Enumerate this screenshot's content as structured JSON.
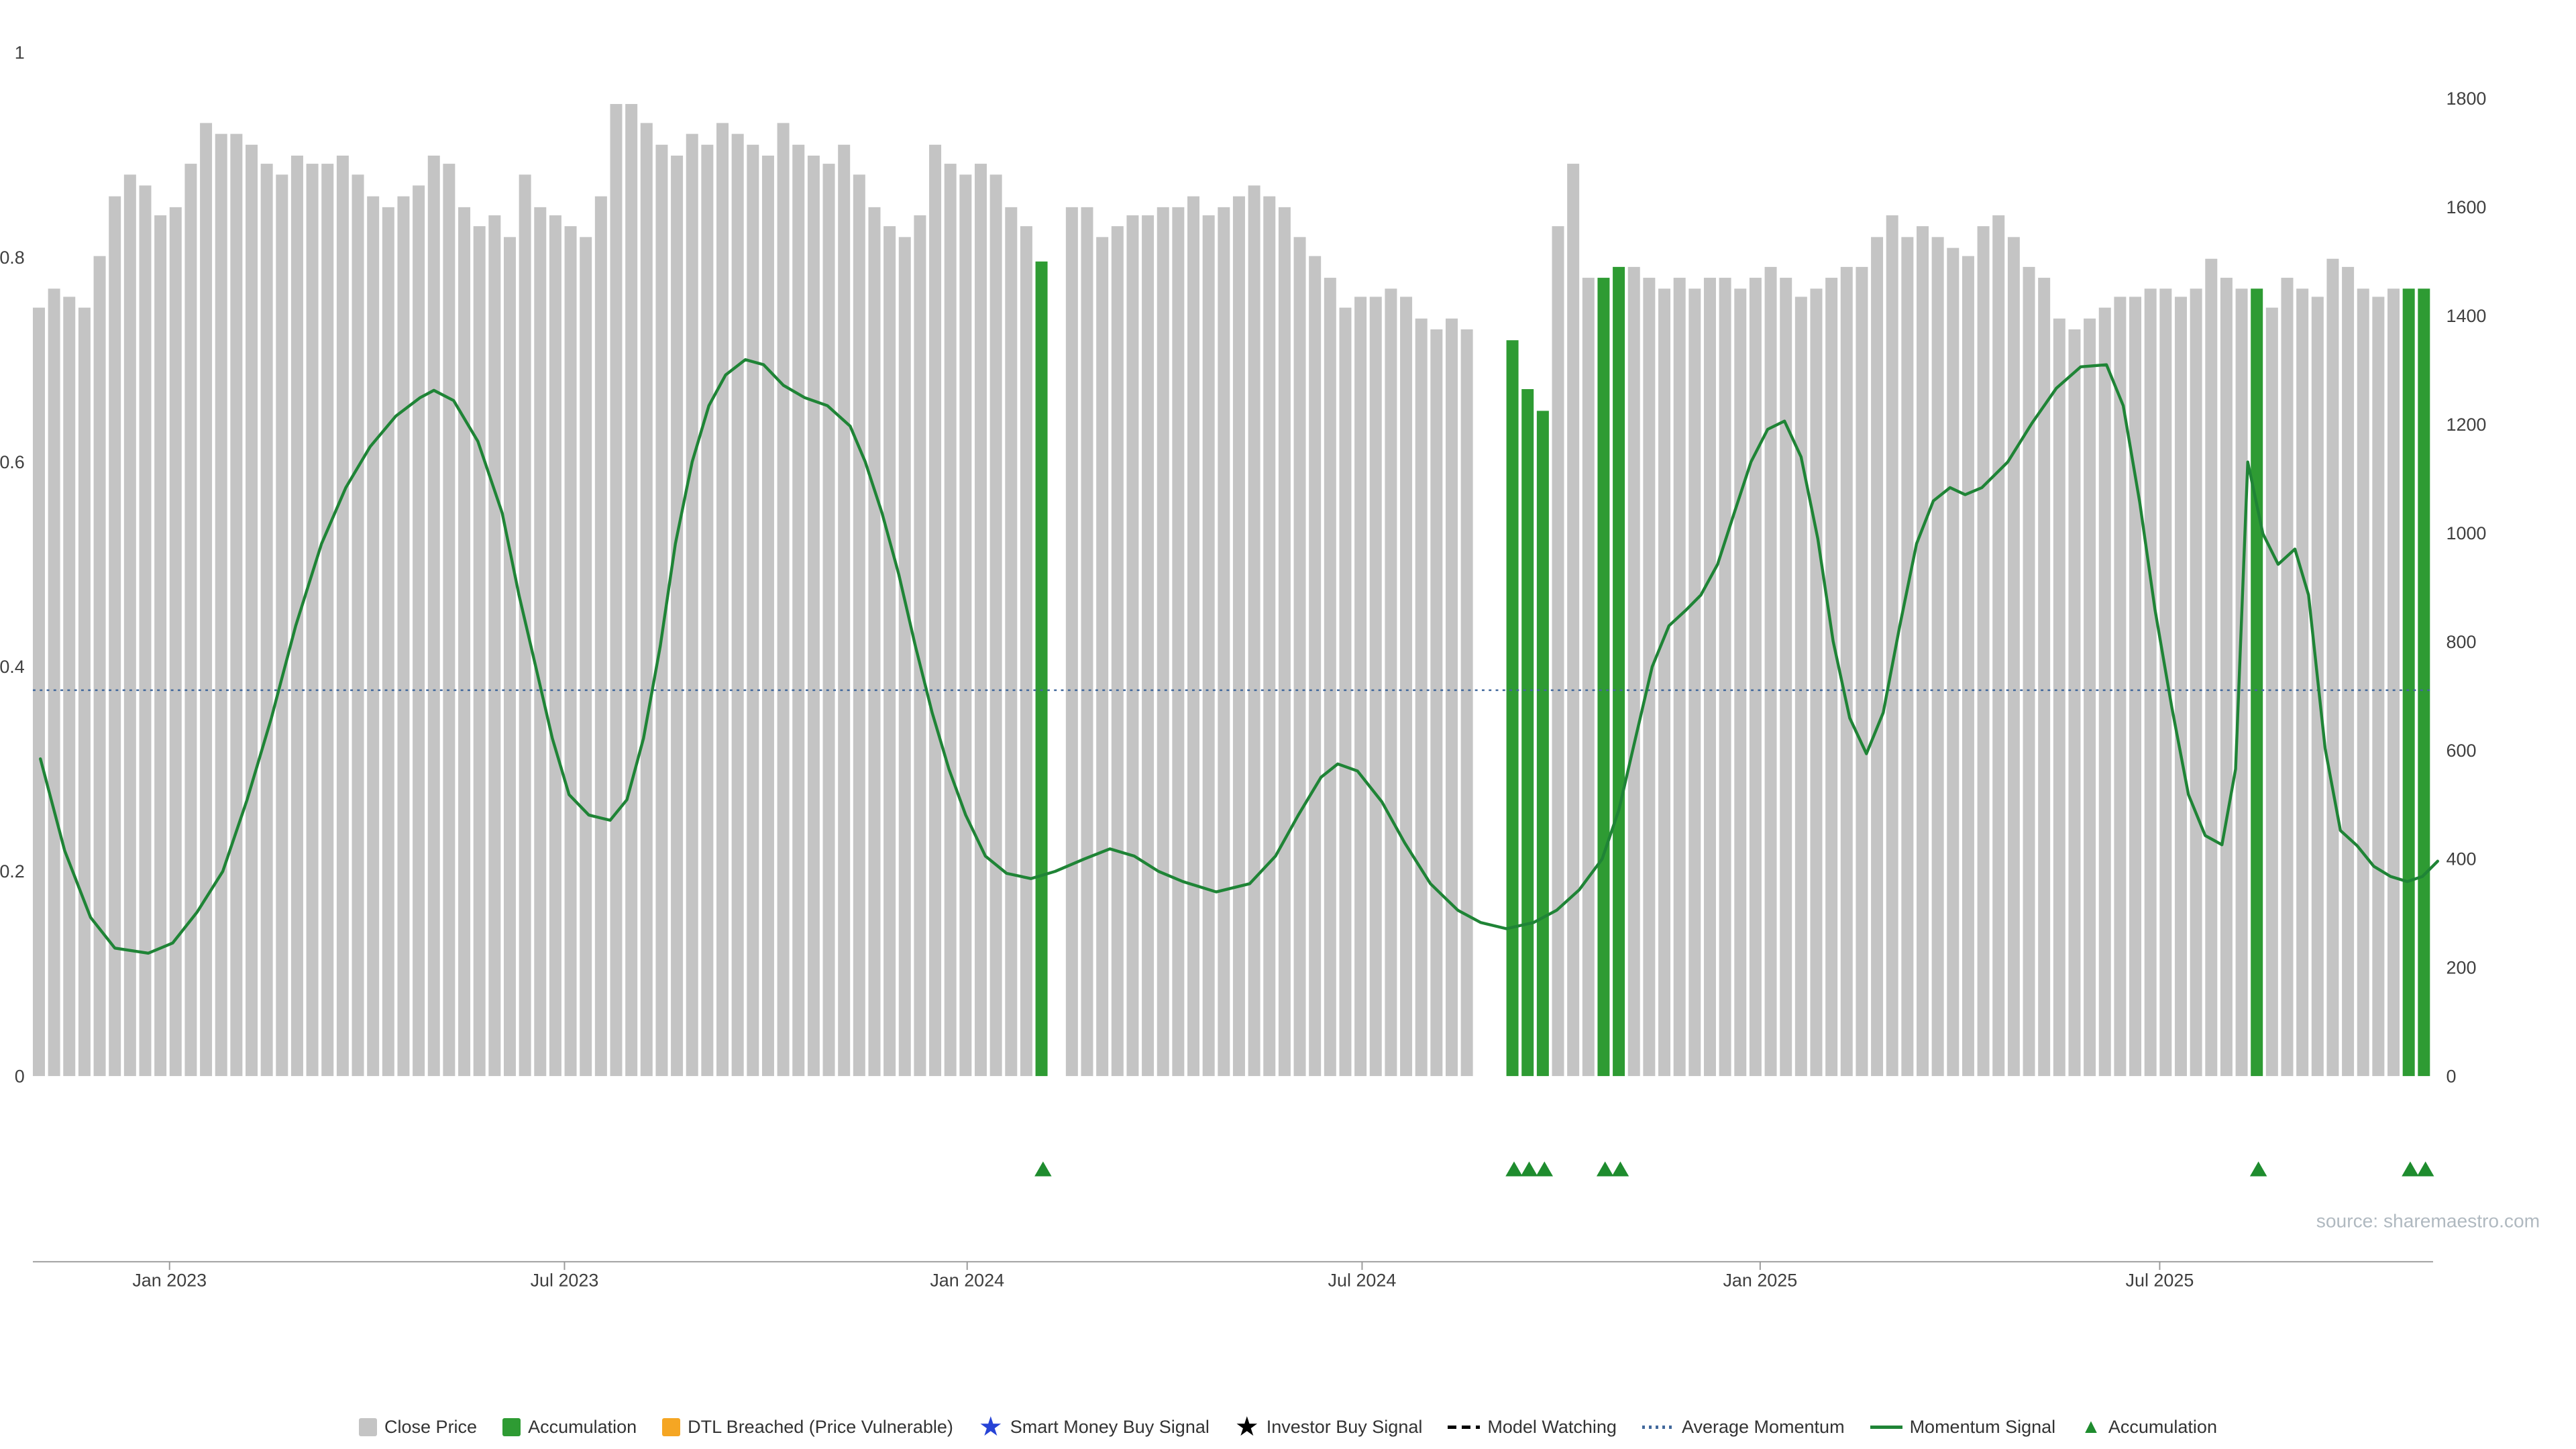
{
  "source_text": "source: sharemaestro.com",
  "colors": {
    "close_gray": "#c4c4c4",
    "accumulation_green": "#2e9b33",
    "momentum_green": "#1f8436",
    "triangle_green": "#1e8c2e",
    "average_momentum_blue": "#41689c",
    "axis_text": "#3f3f3f",
    "x_axis_line": "#9a9a9a",
    "source_text_color": "#b0b9c0",
    "legend_text": "#333333",
    "star_blue": "#2743d6",
    "star_black": "#000000",
    "dash_black": "#000000",
    "dtl_orange": "#f5a623"
  },
  "axes": {
    "left_tick_values": [
      0,
      0.2,
      0.4,
      0.6,
      0.8,
      1
    ],
    "left_tick_labels": [
      "0",
      "0.2",
      "0.4",
      "0.6",
      "0.8",
      "1"
    ],
    "right_tick_values": [
      0,
      200,
      400,
      600,
      800,
      1000,
      1200,
      1400,
      1600,
      1800
    ],
    "right_tick_labels": [
      "0",
      "200",
      "400",
      "600",
      "800",
      "1000",
      "1200",
      "1400",
      "1600",
      "1800"
    ],
    "x_ticks": [
      {
        "label": "Jan 2023",
        "index": 9
      },
      {
        "label": "Jul 2023",
        "index": 35
      },
      {
        "label": "Jan 2024",
        "index": 61.5
      },
      {
        "label": "Jul 2024",
        "index": 87.5
      },
      {
        "label": "Jan 2025",
        "index": 113.7
      },
      {
        "label": "Jul 2025",
        "index": 140
      }
    ]
  },
  "legend": {
    "items": [
      {
        "marker": "square",
        "color": "#c4c4c4",
        "label": "Close Price"
      },
      {
        "marker": "square",
        "color": "#2e9b33",
        "label": "Accumulation"
      },
      {
        "marker": "square",
        "color": "#f5a623",
        "label": "DTL Breached (Price Vulnerable)"
      },
      {
        "marker": "star",
        "color": "#2743d6",
        "label": "Smart Money Buy Signal"
      },
      {
        "marker": "star",
        "color": "#000000",
        "label": "Investor Buy Signal"
      },
      {
        "marker": "dashes",
        "color": "#000000",
        "label": "Model Watching"
      },
      {
        "marker": "dotted-line",
        "color": "#41689c",
        "label": "Average Momentum"
      },
      {
        "marker": "solid-line",
        "color": "#1f8436",
        "label": "Momentum Signal"
      },
      {
        "marker": "triangle",
        "color": "#1e8c2e",
        "label": "Accumulation"
      }
    ]
  },
  "chart_data": {
    "type": "bar",
    "title": "",
    "description": "Weekly close price bars (right axis) with accumulation weeks highlighted in green, momentum signal line and average momentum (left axis 0-1), plus accumulation triangle markers below the plot.",
    "x_axis": {
      "labels": [
        "Jan 2023",
        "Jul 2023",
        "Jan 2024",
        "Jul 2024",
        "Jan 2025",
        "Jul 2025"
      ]
    },
    "left_axis": {
      "range": [
        0,
        1
      ],
      "ticks": [
        0,
        0.2,
        0.4,
        0.6,
        0.8,
        1
      ]
    },
    "right_axis": {
      "range": [
        0,
        1800
      ],
      "ticks": [
        0,
        200,
        400,
        600,
        800,
        1000,
        1200,
        1400,
        1600,
        1800
      ]
    },
    "close_prices": [
      1415,
      1450,
      1435,
      1415,
      1510,
      1620,
      1660,
      1640,
      1585,
      1600,
      1680,
      1755,
      1735,
      1735,
      1715,
      1680,
      1660,
      1695,
      1680,
      1680,
      1695,
      1660,
      1620,
      1600,
      1620,
      1640,
      1695,
      1680,
      1600,
      1565,
      1585,
      1545,
      1660,
      1600,
      1585,
      1565,
      1545,
      1620,
      1790,
      1790,
      1755,
      1715,
      1695,
      1735,
      1715,
      1755,
      1735,
      1715,
      1695,
      1755,
      1715,
      1695,
      1680,
      1715,
      1660,
      1600,
      1565,
      1545,
      1585,
      1715,
      1680,
      1660,
      1680,
      1660,
      1600,
      1565,
      1500,
      null,
      1600,
      1600,
      1545,
      1565,
      1585,
      1585,
      1600,
      1600,
      1620,
      1585,
      1600,
      1620,
      1640,
      1620,
      1600,
      1545,
      1510,
      1470,
      1415,
      1435,
      1435,
      1450,
      1435,
      1395,
      1375,
      1395,
      1375,
      null,
      null,
      1355,
      1265,
      1225,
      1565,
      1680,
      1470,
      1470,
      1490,
      1490,
      1470,
      1450,
      1470,
      1450,
      1470,
      1470,
      1450,
      1470,
      1490,
      1470,
      1435,
      1450,
      1470,
      1490,
      1490,
      1545,
      1585,
      1545,
      1565,
      1545,
      1525,
      1510,
      1565,
      1585,
      1545,
      1490,
      1470,
      1395,
      1375,
      1395,
      1415,
      1435,
      1435,
      1450,
      1450,
      1435,
      1450,
      1505,
      1470,
      1450,
      1450,
      1415,
      1470,
      1450,
      1435,
      1505,
      1490,
      1450,
      1435,
      1450,
      1450,
      1450
    ],
    "accumulation_indices": [
      66,
      97,
      98,
      99,
      103,
      104,
      146,
      156,
      157
    ],
    "accumulation_markers": [
      66,
      97,
      98,
      99,
      103,
      104,
      146,
      156,
      157
    ],
    "average_momentum": 0.377,
    "momentum_signal_points": [
      [
        0,
        0.31
      ],
      [
        1.6,
        0.22
      ],
      [
        3.3,
        0.155
      ],
      [
        4.9,
        0.125
      ],
      [
        7.1,
        0.12
      ],
      [
        8.7,
        0.13
      ],
      [
        10.3,
        0.16
      ],
      [
        12,
        0.2
      ],
      [
        13.6,
        0.27
      ],
      [
        15.2,
        0.35
      ],
      [
        16.8,
        0.44
      ],
      [
        18.5,
        0.52
      ],
      [
        20.1,
        0.575
      ],
      [
        21.7,
        0.615
      ],
      [
        23.4,
        0.645
      ],
      [
        25,
        0.663
      ],
      [
        25.9,
        0.67
      ],
      [
        27.2,
        0.66
      ],
      [
        28.8,
        0.62
      ],
      [
        30.4,
        0.55
      ],
      [
        31.5,
        0.47
      ],
      [
        32.6,
        0.4
      ],
      [
        33.7,
        0.33
      ],
      [
        34.8,
        0.275
      ],
      [
        36.1,
        0.255
      ],
      [
        37.5,
        0.25
      ],
      [
        38.6,
        0.27
      ],
      [
        39.7,
        0.33
      ],
      [
        40.8,
        0.42
      ],
      [
        41.8,
        0.52
      ],
      [
        42.9,
        0.6
      ],
      [
        44,
        0.655
      ],
      [
        45.1,
        0.685
      ],
      [
        46.4,
        0.7
      ],
      [
        47.6,
        0.695
      ],
      [
        48.9,
        0.675
      ],
      [
        50.3,
        0.663
      ],
      [
        51.8,
        0.655
      ],
      [
        53.3,
        0.635
      ],
      [
        54.3,
        0.6
      ],
      [
        55.4,
        0.55
      ],
      [
        56.5,
        0.49
      ],
      [
        57.6,
        0.42
      ],
      [
        58.7,
        0.355
      ],
      [
        59.8,
        0.3
      ],
      [
        60.9,
        0.255
      ],
      [
        62.2,
        0.215
      ],
      [
        63.6,
        0.198
      ],
      [
        65.2,
        0.193
      ],
      [
        66.8,
        0.2
      ],
      [
        68.7,
        0.212
      ],
      [
        70.4,
        0.222
      ],
      [
        72,
        0.215
      ],
      [
        73.6,
        0.2
      ],
      [
        75.2,
        0.19
      ],
      [
        77.4,
        0.18
      ],
      [
        79.6,
        0.188
      ],
      [
        81.3,
        0.215
      ],
      [
        82.8,
        0.255
      ],
      [
        84.3,
        0.292
      ],
      [
        85.4,
        0.305
      ],
      [
        86.7,
        0.298
      ],
      [
        88.3,
        0.268
      ],
      [
        89.8,
        0.228
      ],
      [
        91.5,
        0.188
      ],
      [
        93.3,
        0.162
      ],
      [
        94.8,
        0.15
      ],
      [
        96.5,
        0.144
      ],
      [
        98.3,
        0.15
      ],
      [
        99.8,
        0.162
      ],
      [
        101.3,
        0.182
      ],
      [
        102.8,
        0.212
      ],
      [
        103.9,
        0.26
      ],
      [
        105,
        0.33
      ],
      [
        106.1,
        0.4
      ],
      [
        107.2,
        0.44
      ],
      [
        108.3,
        0.455
      ],
      [
        109.3,
        0.47
      ],
      [
        110.4,
        0.5
      ],
      [
        111.5,
        0.55
      ],
      [
        112.6,
        0.6
      ],
      [
        113.7,
        0.632
      ],
      [
        114.8,
        0.64
      ],
      [
        115.9,
        0.605
      ],
      [
        117,
        0.525
      ],
      [
        118,
        0.425
      ],
      [
        119.1,
        0.35
      ],
      [
        120.2,
        0.315
      ],
      [
        121.3,
        0.355
      ],
      [
        122.4,
        0.44
      ],
      [
        123.5,
        0.52
      ],
      [
        124.6,
        0.562
      ],
      [
        125.7,
        0.575
      ],
      [
        126.7,
        0.568
      ],
      [
        127.8,
        0.575
      ],
      [
        129.5,
        0.6
      ],
      [
        131.1,
        0.638
      ],
      [
        132.7,
        0.672
      ],
      [
        134.3,
        0.693
      ],
      [
        136,
        0.695
      ],
      [
        137.1,
        0.655
      ],
      [
        138.2,
        0.56
      ],
      [
        139.2,
        0.455
      ],
      [
        140.3,
        0.36
      ],
      [
        141.4,
        0.275
      ],
      [
        142.5,
        0.235
      ],
      [
        143.6,
        0.226
      ],
      [
        144.5,
        0.3
      ],
      [
        145.3,
        0.6
      ],
      [
        146.3,
        0.53
      ],
      [
        147.3,
        0.5
      ],
      [
        148.4,
        0.515
      ],
      [
        149.3,
        0.47
      ],
      [
        150.4,
        0.32
      ],
      [
        151.4,
        0.24
      ],
      [
        152.5,
        0.225
      ],
      [
        153.6,
        0.205
      ],
      [
        154.7,
        0.195
      ],
      [
        155.8,
        0.19
      ],
      [
        156.8,
        0.195
      ],
      [
        157.8,
        0.21
      ]
    ]
  }
}
